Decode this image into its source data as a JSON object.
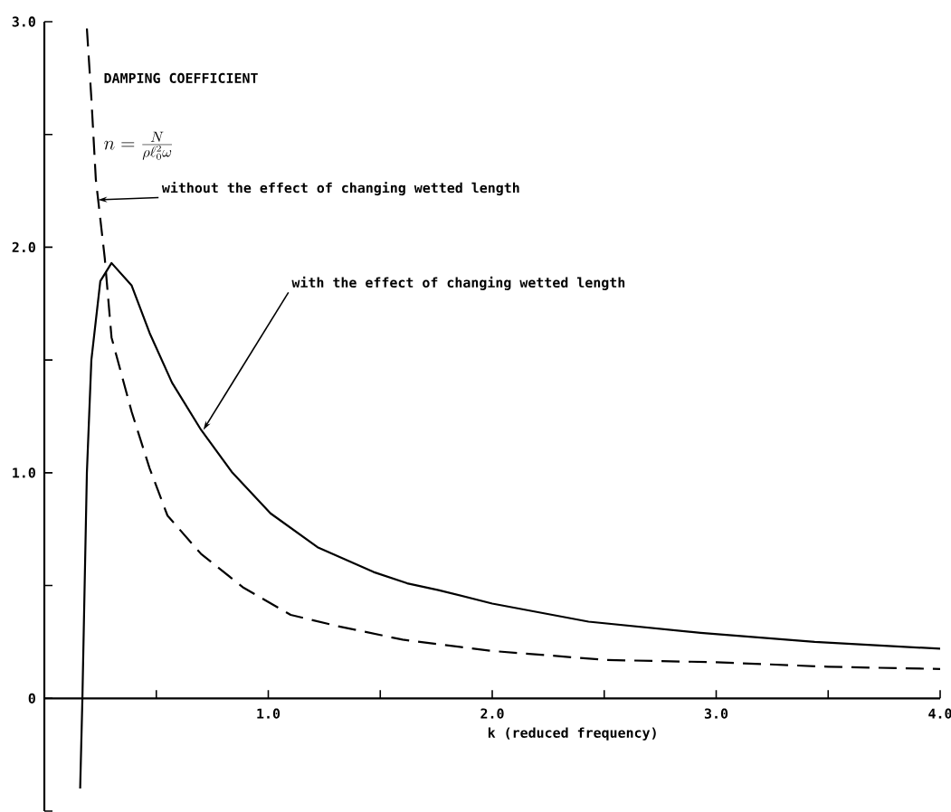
{
  "chart_data": {
    "type": "line",
    "xlabel": "k (reduced frequency)",
    "annotations": [
      "DAMPING COEFFICIENT",
      "n=\\frac{N}{\\rho \\ell_0^2\\omega}",
      {
        "text": "without the effect of changing wetted length",
        "x": 0.24,
        "y": 2.21
      },
      {
        "text": "with the effect of changing wetted length",
        "x": 0.71,
        "y": 1.19
      }
    ],
    "series": [
      {
        "color": "#000000",
        "line_style": "solid",
        "x": [
          0.16,
          0.17,
          0.19,
          0.21,
          0.25,
          0.3,
          0.39,
          0.47,
          0.57,
          0.7,
          0.84,
          1.01,
          1.22,
          1.47,
          1.62,
          1.76,
          2.0,
          2.43,
          2.93,
          3.44,
          4.0
        ],
        "values": [
          -0.4,
          0,
          1.0,
          1.5,
          1.85,
          1.93,
          1.83,
          1.62,
          1.4,
          1.19,
          1.0,
          0.82,
          0.67,
          0.56,
          0.51,
          0.48,
          0.42,
          0.34,
          0.29,
          0.25,
          0.22
        ]
      },
      {
        "color": "#000000",
        "line_style": "dashed",
        "x": [
          0.19,
          0.21,
          0.23,
          0.27,
          0.3,
          0.39,
          0.47,
          0.55,
          0.7,
          0.89,
          1.1,
          1.31,
          1.6,
          2.0,
          2.51,
          3.0,
          3.5,
          4.0
        ],
        "values": [
          2.97,
          2.66,
          2.3,
          1.95,
          1.6,
          1.27,
          1.02,
          0.81,
          0.64,
          0.49,
          0.37,
          0.32,
          0.26,
          0.21,
          0.17,
          0.16,
          0.14,
          0.13
        ]
      }
    ],
    "xlim": [
      0,
      4.0
    ],
    "ylim": [
      -0.5,
      3.0
    ],
    "xticks": [
      {
        "value": 0.5,
        "label": null
      },
      {
        "value": 1,
        "label": "1.0"
      },
      {
        "value": 1.5,
        "label": null
      },
      {
        "value": 2,
        "label": "2.0"
      },
      {
        "value": 2.5,
        "label": null
      },
      {
        "value": 3,
        "label": "3.0"
      },
      {
        "value": 3.5,
        "label": null
      },
      {
        "value": 4,
        "label": "4.0"
      }
    ],
    "yticks": [
      {
        "value": -0.5,
        "label": null
      },
      0,
      {
        "value": 0.5,
        "label": null
      },
      {
        "value": 1,
        "label": "1.0"
      },
      {
        "value": 1.5,
        "label": null
      },
      {
        "value": 2,
        "label": "2.0"
      },
      {
        "value": 2.5,
        "label": null
      },
      {
        "value": 3,
        "label": "3.0"
      }
    ]
  }
}
